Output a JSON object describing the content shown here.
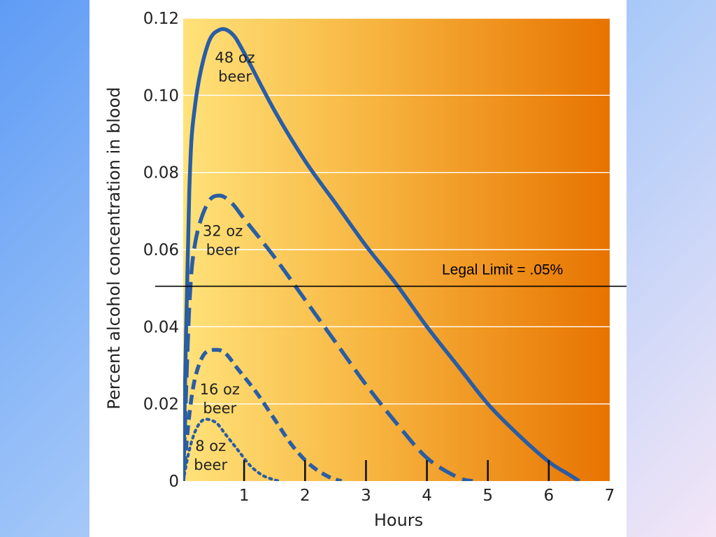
{
  "chart_data": {
    "type": "line",
    "xlabel": "Hours",
    "ylabel": "Percent alcohol concentration in blood",
    "xlim": [
      0,
      7
    ],
    "ylim": [
      0,
      0.12
    ],
    "x_ticks": [
      "1",
      "2",
      "3",
      "4",
      "5",
      "6",
      "7"
    ],
    "y_ticks": [
      "0",
      "0.02",
      "0.04",
      "0.06",
      "0.08",
      "0.10",
      "0.12"
    ],
    "y_tick_values": [
      0,
      0.02,
      0.04,
      0.06,
      0.08,
      0.1,
      0.12
    ],
    "grid": true,
    "series": [
      {
        "name": "48 oz beer",
        "line1": "48 oz",
        "line2": "beer",
        "style": "solid",
        "x": [
          0,
          0.1,
          0.2,
          0.4,
          0.6,
          0.8,
          1.0,
          1.5,
          2.0,
          2.5,
          3.0,
          3.5,
          4.0,
          4.5,
          5.0,
          5.5,
          6.0,
          6.3,
          6.5
        ],
        "y": [
          0,
          0.075,
          0.098,
          0.113,
          0.117,
          0.116,
          0.111,
          0.096,
          0.083,
          0.072,
          0.061,
          0.051,
          0.04,
          0.03,
          0.02,
          0.012,
          0.005,
          0.002,
          0
        ]
      },
      {
        "name": "32 oz beer",
        "line1": "32 oz",
        "line2": "beer",
        "style": "dashed",
        "x": [
          0,
          0.1,
          0.2,
          0.4,
          0.6,
          0.8,
          1.0,
          1.5,
          2.0,
          2.5,
          3.0,
          3.5,
          4.0,
          4.5,
          4.75
        ],
        "y": [
          0,
          0.045,
          0.062,
          0.072,
          0.074,
          0.072,
          0.068,
          0.058,
          0.047,
          0.036,
          0.025,
          0.015,
          0.006,
          0.001,
          0
        ]
      },
      {
        "name": "16 oz beer",
        "line1": "16 oz",
        "line2": "beer",
        "style": "short-dashed",
        "x": [
          0,
          0.1,
          0.2,
          0.35,
          0.55,
          0.7,
          0.9,
          1.2,
          1.5,
          1.8,
          2.1,
          2.4,
          2.6
        ],
        "y": [
          0,
          0.017,
          0.027,
          0.033,
          0.034,
          0.033,
          0.029,
          0.023,
          0.016,
          0.009,
          0.004,
          0.001,
          0
        ]
      },
      {
        "name": "8 oz beer",
        "line1": "8 oz",
        "line2": "beer",
        "style": "dotted",
        "x": [
          0,
          0.1,
          0.2,
          0.3,
          0.4,
          0.55,
          0.7,
          0.9,
          1.1,
          1.3,
          1.5,
          1.6
        ],
        "y": [
          0,
          0.008,
          0.013,
          0.0155,
          0.016,
          0.015,
          0.012,
          0.008,
          0.004,
          0.0015,
          0.0003,
          0
        ]
      }
    ],
    "annotation": {
      "text": "Legal Limit = .05%",
      "y": 0.0505
    },
    "colors": {
      "curve": "#2a5da3",
      "bg_left": "#ffe27a",
      "bg_right": "#e87300",
      "grid": "#ffffff",
      "limit_line": "#000000"
    }
  }
}
